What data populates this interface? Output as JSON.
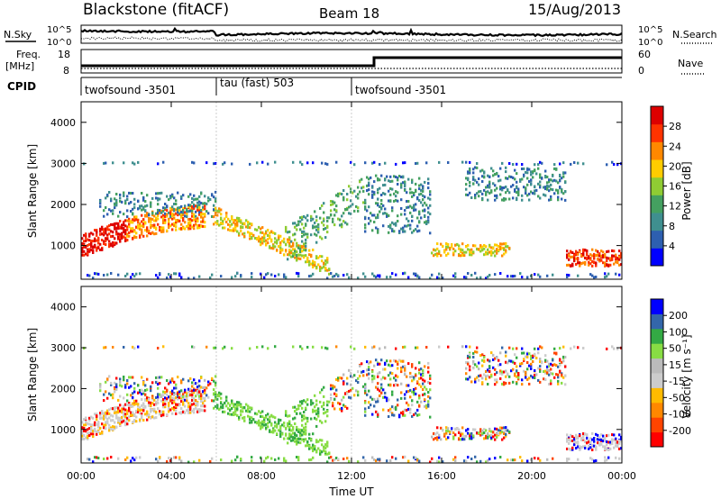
{
  "header": {
    "station": "Blackstone (fitACF)",
    "beam": "Beam 18",
    "date": "15/Aug/2013"
  },
  "noise_panel": {
    "left_label": "N.Sky",
    "left_ticks": [
      "10^5",
      "10^0"
    ],
    "right_label": "N.Search",
    "right_ticks": [
      "10^5",
      "10^0"
    ]
  },
  "freq_panel": {
    "left_label_1": "Freq.",
    "left_label_2": "[MHz]",
    "left_ticks": [
      "18",
      "8"
    ],
    "right_label": "Nave",
    "right_ticks": [
      "60",
      "0"
    ]
  },
  "cpid_panel": {
    "label": "CPID",
    "segments": [
      {
        "text": "twofsound -3501",
        "start_hour": 0
      },
      {
        "text": "tau (fast) 503",
        "start_hour": 6
      },
      {
        "text": "twofsound -3501",
        "start_hour": 12.5
      }
    ]
  },
  "x_axis": {
    "label": "Time UT",
    "tick_labels": [
      "00:00",
      "04:00",
      "08:00",
      "12:00",
      "16:00",
      "20:00",
      "00:00"
    ],
    "tick_hours": [
      0,
      4,
      8,
      12,
      16,
      20,
      24
    ]
  },
  "colors": {
    "power_scale": [
      "#0000ff",
      "#2d5fb0",
      "#3f8f8f",
      "#44a060",
      "#8fcc33",
      "#ffcc00",
      "#ff8800",
      "#ff3300",
      "#dd0000"
    ],
    "velocity_scale": [
      "#ff0000",
      "#ff4400",
      "#ff8800",
      "#ffbb00",
      "#cccccc",
      "#bbbbbb",
      "#88dd44",
      "#33aa44",
      "#3366aa",
      "#0000ff"
    ]
  },
  "chart_data": [
    {
      "type": "heatmap",
      "name": "power",
      "ylabel": "Slant Range [km]",
      "y_ticks": [
        1000,
        2000,
        3000,
        4000
      ],
      "ylim": [
        180,
        4500
      ],
      "xlim": [
        0,
        24
      ],
      "colorbar": {
        "label": "Power [dB]",
        "tick_labels": [
          "4",
          "8",
          "12",
          "16",
          "20",
          "24",
          "28"
        ],
        "range": [
          0,
          32
        ]
      },
      "features": [
        {
          "desc_band": "main E/F echo",
          "hours": [
            0,
            4.5
          ],
          "range_km": [
            950,
            1700
          ],
          "level": "high"
        },
        {
          "desc_band": "afternoon band",
          "hours": [
            6,
            10.5
          ],
          "range_km": [
            400,
            1800
          ],
          "level": "mid"
        },
        {
          "desc_band": "16-19 UT band",
          "hours": [
            15.5,
            19
          ],
          "range_km": [
            700,
            1100
          ],
          "level": "mid"
        },
        {
          "desc_band": "late evening",
          "hours": [
            21.5,
            24
          ],
          "range_km": [
            400,
            900
          ],
          "level": "high"
        }
      ]
    },
    {
      "type": "heatmap",
      "name": "velocity",
      "ylabel": "Slant Range [km]",
      "y_ticks": [
        1000,
        2000,
        3000,
        4000
      ],
      "ylim": [
        180,
        4500
      ],
      "xlim": [
        0,
        24
      ],
      "colorbar": {
        "label": "Velocity [m s⁻¹]",
        "tick_labels": [
          "200",
          "100",
          "50",
          "15",
          "-15",
          "-50",
          "-100",
          "-200"
        ],
        "range": [
          -250,
          250
        ]
      }
    }
  ]
}
